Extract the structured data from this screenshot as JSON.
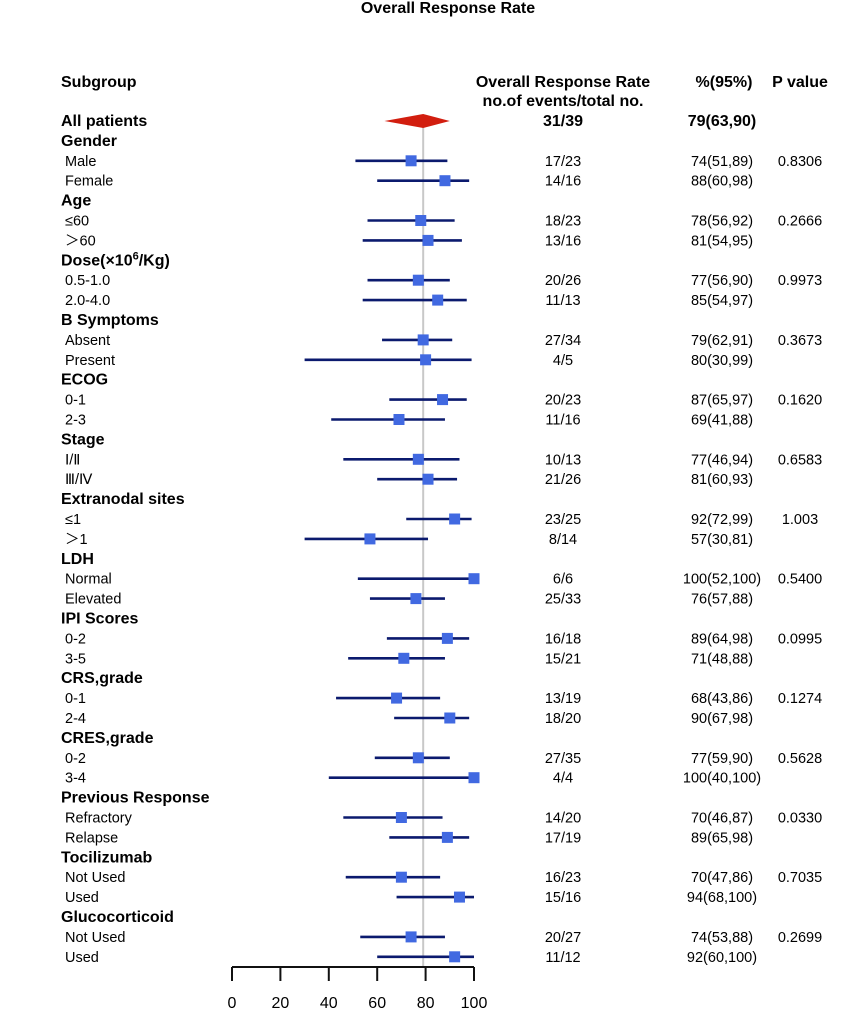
{
  "chart_data": {
    "type": "forest",
    "title": "Overall Response Rate",
    "headers": {
      "subgroup": "Subgroup",
      "events_line1": "Overall Response Rate",
      "events_line2": "no.of events/total no.",
      "ci": "%(95%)",
      "p": "P value"
    },
    "xlim": [
      0,
      100
    ],
    "xticks": [
      "0",
      "20",
      "40",
      "60",
      "80",
      "100"
    ],
    "reference_line": 79,
    "colors": {
      "point": "#4169e1",
      "ci_line": "#0b1a6e",
      "diamond": "#d21e0f",
      "ref_line": "#c8c8c8"
    },
    "rows": [
      {
        "kind": "overall",
        "label": "All patients",
        "events": "31/39",
        "ci": "79(63,90)",
        "p": "",
        "est": 79,
        "lo": 63,
        "hi": 90
      },
      {
        "kind": "group",
        "label": "Gender"
      },
      {
        "kind": "item",
        "label": "Male",
        "events": "17/23",
        "ci": "74(51,89)",
        "p": "0.8306",
        "est": 74,
        "lo": 51,
        "hi": 89
      },
      {
        "kind": "item",
        "label": "Female",
        "events": "14/16",
        "ci": "88(60,98)",
        "p": "",
        "est": 88,
        "lo": 60,
        "hi": 98
      },
      {
        "kind": "group",
        "label": "Age"
      },
      {
        "kind": "item",
        "label": "≤60",
        "events": "18/23",
        "ci": "78(56,92)",
        "p": "0.2666",
        "est": 78,
        "lo": 56,
        "hi": 92
      },
      {
        "kind": "item",
        "label": "＞60",
        "events": "13/16",
        "ci": "81(54,95)",
        "p": "",
        "est": 81,
        "lo": 54,
        "hi": 95
      },
      {
        "kind": "group",
        "label": "Dose(×10",
        "sup": "6",
        "label_suffix": "/Kg)"
      },
      {
        "kind": "item",
        "label": "0.5-1.0",
        "events": "20/26",
        "ci": "77(56,90)",
        "p": "0.9973",
        "est": 77,
        "lo": 56,
        "hi": 90
      },
      {
        "kind": "item",
        "label": "2.0-4.0",
        "events": "11/13",
        "ci": "85(54,97)",
        "p": "",
        "est": 85,
        "lo": 54,
        "hi": 97
      },
      {
        "kind": "group",
        "label": "B Symptoms"
      },
      {
        "kind": "item",
        "label": "Absent",
        "events": "27/34",
        "ci": "79(62,91)",
        "p": "0.3673",
        "est": 79,
        "lo": 62,
        "hi": 91
      },
      {
        "kind": "item",
        "label": "Present",
        "events": "4/5",
        "ci": "80(30,99)",
        "p": "",
        "est": 80,
        "lo": 30,
        "hi": 99
      },
      {
        "kind": "group",
        "label": "ECOG"
      },
      {
        "kind": "item",
        "label": "0-1",
        "events": "20/23",
        "ci": "87(65,97)",
        "p": "0.1620",
        "est": 87,
        "lo": 65,
        "hi": 97
      },
      {
        "kind": "item",
        "label": "2-3",
        "events": "11/16",
        "ci": "69(41,88)",
        "p": "",
        "est": 69,
        "lo": 41,
        "hi": 88
      },
      {
        "kind": "group",
        "label": "Stage"
      },
      {
        "kind": "item",
        "label": "Ⅰ/Ⅱ",
        "events": "10/13",
        "ci": "77(46,94)",
        "p": "0.6583",
        "est": 77,
        "lo": 46,
        "hi": 94
      },
      {
        "kind": "item",
        "label": "Ⅲ/Ⅳ",
        "events": "21/26",
        "ci": "81(60,93)",
        "p": "",
        "est": 81,
        "lo": 60,
        "hi": 93
      },
      {
        "kind": "group",
        "label": "Extranodal sites"
      },
      {
        "kind": "item",
        "label": "≤1",
        "events": "23/25",
        "ci": "92(72,99)",
        "p": "1.003",
        "est": 92,
        "lo": 72,
        "hi": 99
      },
      {
        "kind": "item",
        "label": "＞1",
        "events": "8/14",
        "ci": "57(30,81)",
        "p": "",
        "est": 57,
        "lo": 30,
        "hi": 81
      },
      {
        "kind": "group",
        "label": "LDH"
      },
      {
        "kind": "item",
        "label": "Normal",
        "events": "6/6",
        "ci": "100(52,100)",
        "p": "0.5400",
        "est": 100,
        "lo": 52,
        "hi": 100
      },
      {
        "kind": "item",
        "label": "Elevated",
        "events": "25/33",
        "ci": "76(57,88)",
        "p": "",
        "est": 76,
        "lo": 57,
        "hi": 88
      },
      {
        "kind": "group",
        "label": "IPI Scores"
      },
      {
        "kind": "item",
        "label": "0-2",
        "events": "16/18",
        "ci": "89(64,98)",
        "p": "0.0995",
        "est": 89,
        "lo": 64,
        "hi": 98
      },
      {
        "kind": "item",
        "label": "3-5",
        "events": "15/21",
        "ci": "71(48,88)",
        "p": "",
        "est": 71,
        "lo": 48,
        "hi": 88
      },
      {
        "kind": "group",
        "label": "CRS,grade"
      },
      {
        "kind": "item",
        "label": "0-1",
        "events": "13/19",
        "ci": "68(43,86)",
        "p": "0.1274",
        "est": 68,
        "lo": 43,
        "hi": 86
      },
      {
        "kind": "item",
        "label": "2-4",
        "events": "18/20",
        "ci": "90(67,98)",
        "p": "",
        "est": 90,
        "lo": 67,
        "hi": 98
      },
      {
        "kind": "group",
        "label": "CRES,grade"
      },
      {
        "kind": "item",
        "label": "0-2",
        "events": "27/35",
        "ci": "77(59,90)",
        "p": "0.5628",
        "est": 77,
        "lo": 59,
        "hi": 90
      },
      {
        "kind": "item",
        "label": "3-4",
        "events": "4/4",
        "ci": "100(40,100)",
        "p": "",
        "est": 100,
        "lo": 40,
        "hi": 100
      },
      {
        "kind": "group",
        "label": "Previous Response"
      },
      {
        "kind": "item",
        "label": "Refractory",
        "events": "14/20",
        "ci": "70(46,87)",
        "p": "0.0330",
        "est": 70,
        "lo": 46,
        "hi": 87
      },
      {
        "kind": "item",
        "label": "Relapse",
        "events": "17/19",
        "ci": "89(65,98)",
        "p": "",
        "est": 89,
        "lo": 65,
        "hi": 98
      },
      {
        "kind": "group",
        "label": "Tocilizumab"
      },
      {
        "kind": "item",
        "label": "Not Used",
        "events": "16/23",
        "ci": "70(47,86)",
        "p": "0.7035",
        "est": 70,
        "lo": 47,
        "hi": 86
      },
      {
        "kind": "item",
        "label": "Used",
        "events": "15/16",
        "ci": "94(68,100)",
        "p": "",
        "est": 94,
        "lo": 68,
        "hi": 100
      },
      {
        "kind": "group",
        "label": "Glucocorticoid"
      },
      {
        "kind": "item",
        "label": "Not Used",
        "events": "20/27",
        "ci": "74(53,88)",
        "p": "0.2699",
        "est": 74,
        "lo": 53,
        "hi": 88
      },
      {
        "kind": "item",
        "label": "Used",
        "events": "11/12",
        "ci": "92(60,100)",
        "p": "",
        "est": 92,
        "lo": 60,
        "hi": 100
      }
    ]
  }
}
